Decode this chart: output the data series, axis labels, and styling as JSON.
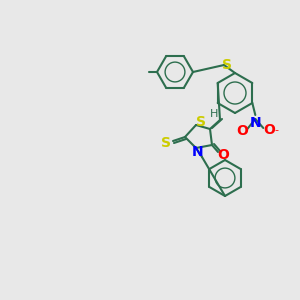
{
  "background_color": "#e8e8e8",
  "bond_color": "#2d6e4e",
  "atom_colors": {
    "O": "#ff0000",
    "N": "#0000ff",
    "S": "#cccc00",
    "H": "#2d6e4e",
    "C": "#2d6e4e"
  },
  "figsize": [
    3.0,
    3.0
  ],
  "dpi": 100
}
